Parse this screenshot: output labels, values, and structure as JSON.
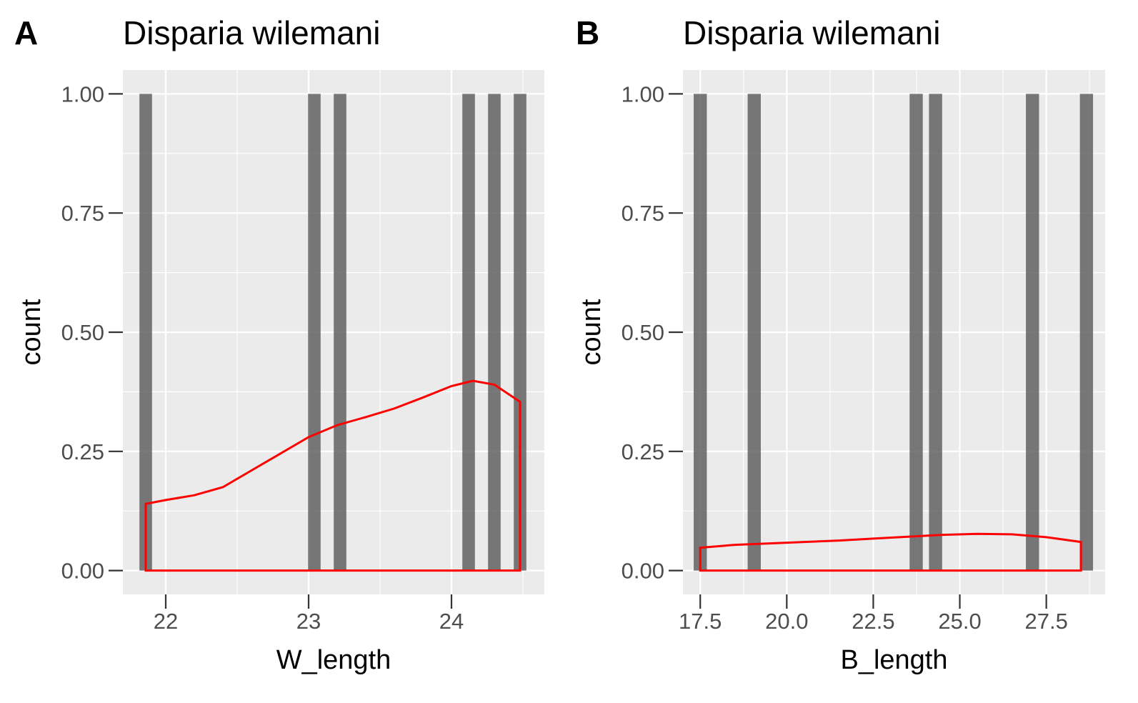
{
  "chart_data": [
    {
      "type": "bar",
      "tag": "A",
      "title": "Disparia wilemani",
      "xlabel": "W_length",
      "ylabel": "count",
      "xlim": [
        21.7,
        24.65
      ],
      "ylim": [
        -0.05,
        1.05
      ],
      "xticks": [
        22,
        23,
        24
      ],
      "xtick_labels": [
        "22",
        "23",
        "24"
      ],
      "yticks": [
        0,
        0.25,
        0.5,
        0.75,
        1
      ],
      "ytick_labels": [
        "0.00",
        "0.25",
        "0.50",
        "0.75",
        "1.00"
      ],
      "grid": true,
      "bar_width": 0.088,
      "bars": {
        "x": [
          21.86,
          23.04,
          23.22,
          24.12,
          24.3,
          24.48
        ],
        "values": [
          1,
          1,
          1,
          1,
          1,
          1
        ]
      },
      "density": {
        "color": "#ff0000",
        "x": [
          21.86,
          22.0,
          22.2,
          22.4,
          22.6,
          22.8,
          23.0,
          23.2,
          23.4,
          23.6,
          23.8,
          24.0,
          24.15,
          24.3,
          24.48
        ],
        "y": [
          0.14,
          0.148,
          0.158,
          0.175,
          0.21,
          0.245,
          0.28,
          0.305,
          0.322,
          0.34,
          0.363,
          0.387,
          0.398,
          0.39,
          0.354
        ]
      }
    },
    {
      "type": "bar",
      "tag": "B",
      "title": "Disparia wilemani",
      "xlabel": "B_length",
      "ylabel": "count",
      "xlim": [
        17.0,
        29.2
      ],
      "ylim": [
        -0.05,
        1.05
      ],
      "xticks": [
        17.5,
        20,
        22.5,
        25,
        27.5
      ],
      "xtick_labels": [
        "17.5",
        "20.0",
        "22.5",
        "25.0",
        "27.5"
      ],
      "yticks": [
        0,
        0.25,
        0.5,
        0.75,
        1
      ],
      "ytick_labels": [
        "0.00",
        "0.25",
        "0.50",
        "0.75",
        "1.00"
      ],
      "grid": true,
      "bar_width": 0.38,
      "bars": {
        "x": [
          17.5,
          19.06,
          23.74,
          24.3,
          27.1,
          28.66
        ],
        "values": [
          1,
          1,
          1,
          1,
          1,
          1
        ]
      },
      "density": {
        "color": "#ff0000",
        "x": [
          17.5,
          18.5,
          19.5,
          20.5,
          21.5,
          22.5,
          23.5,
          24.5,
          25.5,
          26.5,
          27.5,
          28.5
        ],
        "y": [
          0.048,
          0.054,
          0.057,
          0.06,
          0.063,
          0.067,
          0.071,
          0.075,
          0.077,
          0.076,
          0.07,
          0.06
        ]
      }
    }
  ]
}
